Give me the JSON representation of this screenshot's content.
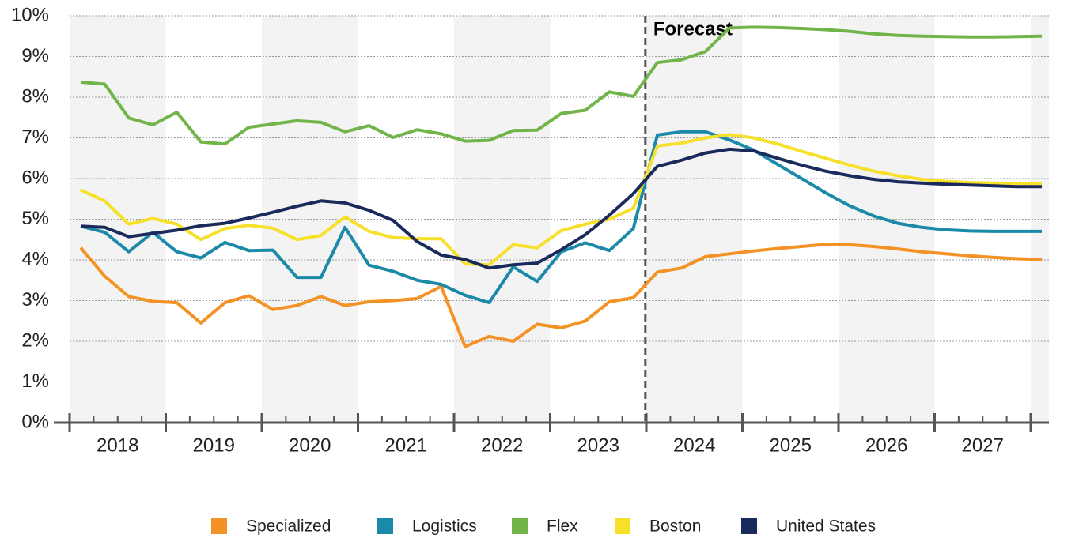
{
  "chart_data": {
    "type": "line",
    "annotation": "Forecast",
    "categories": [
      "2018",
      null,
      null,
      null,
      "2019",
      null,
      null,
      null,
      "2020",
      null,
      null,
      null,
      "2021",
      null,
      null,
      null,
      "2022",
      null,
      null,
      null,
      "2023",
      null,
      null,
      null,
      "2024",
      null,
      null,
      null,
      "2025",
      null,
      null,
      null,
      "2026",
      null,
      null,
      null,
      "2027",
      null,
      null,
      null,
      null
    ],
    "ylim": [
      0,
      10
    ],
    "yticks": [
      {
        "value": 0,
        "label": "0%"
      },
      {
        "value": 1,
        "label": "1%"
      },
      {
        "value": 2,
        "label": "2%"
      },
      {
        "value": 3,
        "label": "3%"
      },
      {
        "value": 4,
        "label": "4%"
      },
      {
        "value": 5,
        "label": "5%"
      },
      {
        "value": 6,
        "label": "6%"
      },
      {
        "value": 7,
        "label": "7%"
      },
      {
        "value": 8,
        "label": "8%"
      },
      {
        "value": 9,
        "label": "9%"
      },
      {
        "value": 10,
        "label": "10%"
      }
    ],
    "grid": true,
    "legend": "bottom",
    "series": [
      {
        "name": "Specialized",
        "color": "#f39325",
        "values": [
          4.3,
          3.6,
          3.1,
          2.98,
          2.95,
          2.45,
          2.95,
          3.12,
          2.78,
          2.88,
          3.1,
          2.88,
          2.97,
          3.0,
          3.05,
          3.35,
          1.87,
          2.12,
          2.0,
          2.42,
          2.33,
          2.5,
          2.97,
          3.07,
          3.7,
          3.8,
          4.08,
          4.15,
          4.22,
          4.28,
          4.33,
          4.38,
          4.37,
          4.33,
          4.27,
          4.2,
          4.15,
          4.1,
          4.06,
          4.03,
          4.01
        ]
      },
      {
        "name": "Logistics",
        "color": "#1b8aa8",
        "values": [
          4.83,
          4.68,
          4.2,
          4.68,
          4.2,
          4.05,
          4.43,
          4.23,
          4.24,
          3.57,
          3.57,
          4.8,
          3.87,
          3.72,
          3.5,
          3.4,
          3.13,
          2.95,
          3.83,
          3.47,
          4.2,
          4.42,
          4.23,
          4.77,
          7.07,
          7.15,
          7.15,
          6.95,
          6.7,
          6.35,
          6.0,
          5.65,
          5.33,
          5.08,
          4.9,
          4.8,
          4.74,
          4.71,
          4.7,
          4.7,
          4.7
        ]
      },
      {
        "name": "Flex",
        "color": "#71b54a",
        "values": [
          8.37,
          8.32,
          7.49,
          7.32,
          7.63,
          6.9,
          6.85,
          7.26,
          7.34,
          7.42,
          7.38,
          7.15,
          7.3,
          7.01,
          7.2,
          7.1,
          6.92,
          6.94,
          7.18,
          7.19,
          7.6,
          7.68,
          8.13,
          8.02,
          8.85,
          8.92,
          9.12,
          9.7,
          9.72,
          9.71,
          9.69,
          9.66,
          9.62,
          9.56,
          9.52,
          9.5,
          9.49,
          9.48,
          9.48,
          9.49,
          9.5
        ]
      },
      {
        "name": "Boston",
        "color": "#f7e02a",
        "values": [
          5.72,
          5.45,
          4.88,
          5.02,
          4.88,
          4.5,
          4.77,
          4.85,
          4.78,
          4.5,
          4.6,
          5.06,
          4.7,
          4.55,
          4.52,
          4.52,
          3.9,
          3.88,
          4.37,
          4.3,
          4.72,
          4.88,
          5.0,
          5.27,
          6.8,
          6.87,
          7.0,
          7.08,
          7.0,
          6.85,
          6.67,
          6.5,
          6.33,
          6.18,
          6.07,
          5.98,
          5.93,
          5.9,
          5.89,
          5.88,
          5.88
        ]
      },
      {
        "name": "United States",
        "color": "#1b2a5c",
        "values": [
          4.83,
          4.8,
          4.57,
          4.65,
          4.73,
          4.84,
          4.9,
          5.03,
          5.17,
          5.32,
          5.45,
          5.4,
          5.22,
          4.97,
          4.45,
          4.12,
          4.01,
          3.8,
          3.88,
          3.92,
          4.25,
          4.62,
          5.1,
          5.63,
          6.3,
          6.45,
          6.63,
          6.72,
          6.68,
          6.5,
          6.33,
          6.18,
          6.07,
          5.98,
          5.92,
          5.89,
          5.86,
          5.84,
          5.82,
          5.8,
          5.8
        ]
      }
    ]
  }
}
